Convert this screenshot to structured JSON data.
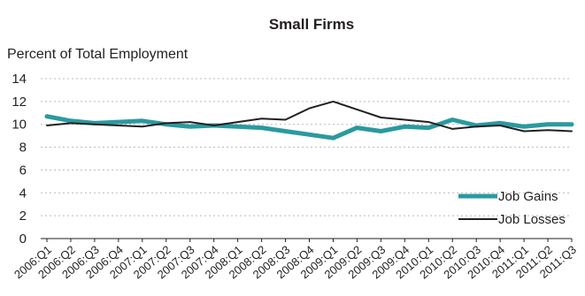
{
  "chart_data": {
    "type": "line",
    "title": "Small Firms",
    "ylabel": "Percent of Total Employment",
    "xlabel": "",
    "ylim": [
      0,
      14
    ],
    "yticks": [
      0,
      2,
      4,
      6,
      8,
      10,
      12,
      14
    ],
    "grid": true,
    "legend_position": "bottom-right",
    "categories": [
      "2006:Q1",
      "2006:Q2",
      "2006:Q3",
      "2006:Q4",
      "2007:Q1",
      "2007:Q2",
      "2007:Q3",
      "2007:Q4",
      "2008:Q1",
      "2008:Q2",
      "2008:Q3",
      "2008:Q4",
      "2009:Q1",
      "2009:Q2",
      "2009:Q3",
      "2009:Q4",
      "2010:Q1",
      "2010:Q2",
      "2010:Q3",
      "2010:Q4",
      "2011:Q1",
      "2011:Q2",
      "2011:Q3"
    ],
    "series": [
      {
        "name": "Job Gains",
        "color": "#2a9a9f",
        "values": [
          10.7,
          10.3,
          10.1,
          10.2,
          10.3,
          10.0,
          9.8,
          9.9,
          9.8,
          9.7,
          9.4,
          9.1,
          8.8,
          9.7,
          9.4,
          9.8,
          9.7,
          10.4,
          9.9,
          10.1,
          9.8,
          10.0,
          10.0
        ]
      },
      {
        "name": "Job Losses",
        "color": "#231f20",
        "values": [
          9.9,
          10.1,
          10.0,
          9.9,
          9.8,
          10.1,
          10.2,
          9.9,
          10.2,
          10.5,
          10.4,
          11.4,
          12.0,
          11.3,
          10.6,
          10.4,
          10.2,
          9.6,
          9.8,
          9.9,
          9.4,
          9.5,
          9.4
        ]
      }
    ]
  }
}
